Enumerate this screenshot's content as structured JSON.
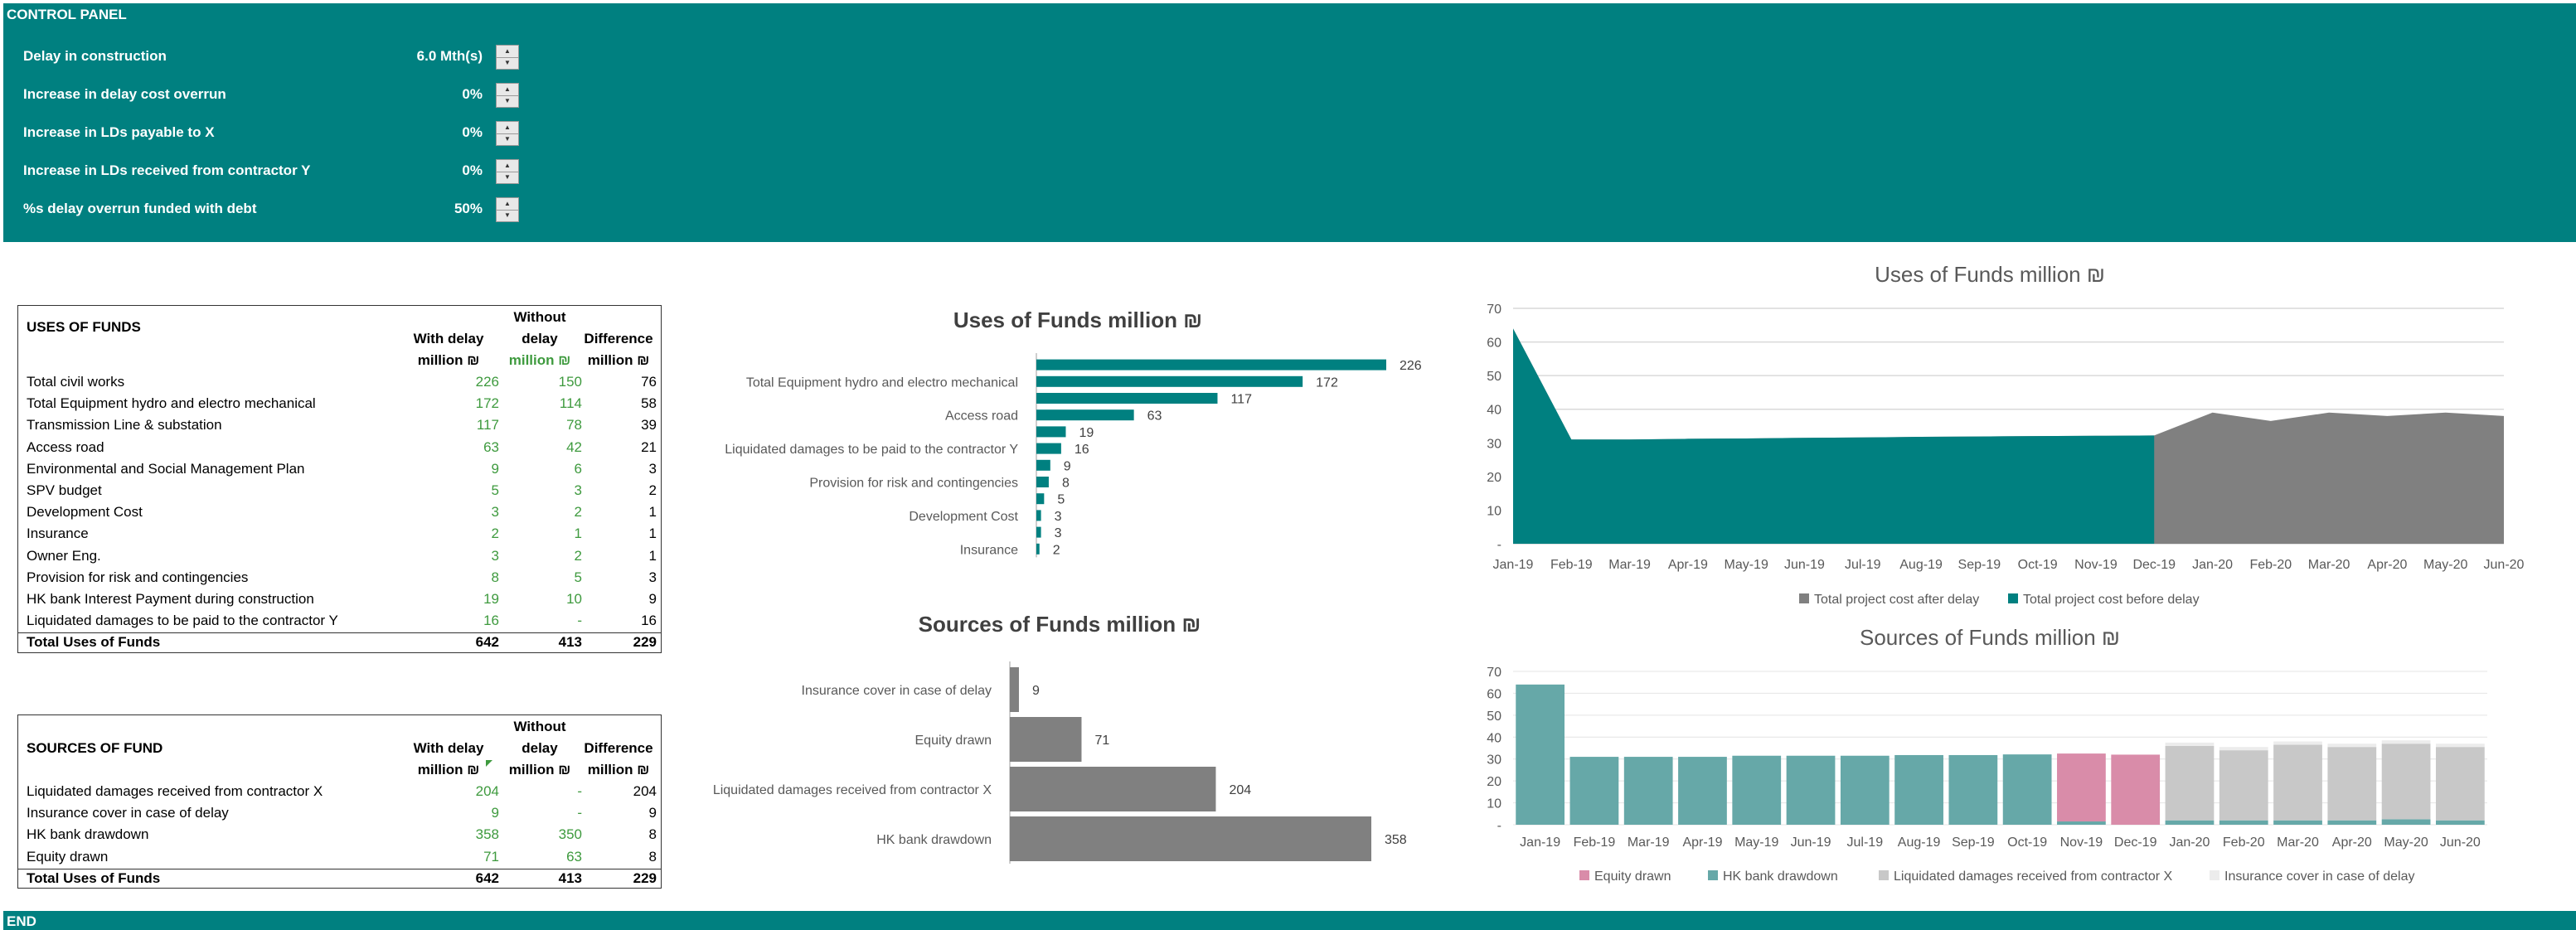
{
  "control_panel": {
    "title": "CONTROL PANEL",
    "rows": [
      {
        "label": "Delay in construction",
        "value": "6.0 Mth(s)"
      },
      {
        "label": "Increase in delay cost overrun",
        "value": "0%"
      },
      {
        "label": "Increase in LDs payable to X",
        "value": "0%"
      },
      {
        "label": "Increase in LDs received from contractor Y",
        "value": "0%"
      },
      {
        "label": "%s delay overrun funded with debt",
        "value": "50%"
      }
    ],
    "spinner_up": "▲",
    "spinner_down": "▼"
  },
  "footer": {
    "label": "END"
  },
  "uses_table": {
    "title": "USES OF FUNDS",
    "headers": {
      "with_l1": "With  delay",
      "with_l2": "million ₪",
      "without_l1": "Without",
      "without_l2": "delay",
      "without_l3": "million ₪",
      "diff_l1": "Difference",
      "diff_l2": "million ₪"
    },
    "rows": [
      {
        "label": "Total civil works",
        "with": "226",
        "without": "150",
        "diff": "76"
      },
      {
        "label": "Total Equipment hydro and electro mechanical",
        "with": "172",
        "without": "114",
        "diff": "58"
      },
      {
        "label": "Transmission Line & substation",
        "with": "117",
        "without": "78",
        "diff": "39"
      },
      {
        "label": "Access road",
        "with": "63",
        "without": "42",
        "diff": "21"
      },
      {
        "label": "Environmental and Social Management Plan",
        "with": "9",
        "without": "6",
        "diff": "3"
      },
      {
        "label": "SPV budget",
        "with": "5",
        "without": "3",
        "diff": "2"
      },
      {
        "label": "Development Cost",
        "with": "3",
        "without": "2",
        "diff": "1"
      },
      {
        "label": "Insurance",
        "with": "2",
        "without": "1",
        "diff": "1"
      },
      {
        "label": "Owner Eng.",
        "with": "3",
        "without": "2",
        "diff": "1"
      },
      {
        "label": "Provision for risk and contingencies",
        "with": "8",
        "without": "5",
        "diff": "3"
      },
      {
        "label": "HK bank  Interest Payment during construction",
        "with": "19",
        "without": "10",
        "diff": "9"
      },
      {
        "label": "Liquidated damages to be paid to the contractor Y",
        "with": "16",
        "without": "-",
        "diff": "16"
      }
    ],
    "total": {
      "label": "Total Uses of Funds",
      "with": "642",
      "without": "413",
      "diff": "229"
    }
  },
  "sources_table": {
    "title": "SOURCES OF FUND",
    "headers": {
      "with_l1": "With  delay",
      "with_l2": "million ₪",
      "without_l1": "Without",
      "without_l2": "delay",
      "without_l3": "million ₪",
      "diff_l1": "Difference",
      "diff_l2": "million ₪"
    },
    "rows": [
      {
        "label": "Liquidated damages received from contractor X",
        "with": "204",
        "without": "-",
        "diff": "204"
      },
      {
        "label": "Insurance cover in case of delay",
        "with": "9",
        "without": "-",
        "diff": "9"
      },
      {
        "label": "HK bank  drawdown",
        "with": "358",
        "without": "350",
        "diff": "8"
      },
      {
        "label": "Equity drawn",
        "with": "71",
        "without": "63",
        "diff": "8"
      }
    ],
    "total": {
      "label": "Total Uses of Funds",
      "with": "642",
      "without": "413",
      "diff": "229"
    }
  },
  "chart_data": [
    {
      "type": "bar",
      "orientation": "horizontal",
      "title": "Uses of Funds million ₪",
      "categories": [
        "",
        "Total Equipment hydro and electro mechanical",
        "",
        "Access road",
        "",
        "Liquidated damages to be paid to the contractor Y",
        "",
        "Provision for risk and contingencies",
        "",
        "Development Cost",
        "",
        "Insurance"
      ],
      "values": [
        226,
        172,
        117,
        63,
        19,
        16,
        9,
        8,
        5,
        3,
        3,
        2
      ],
      "color": "#008080"
    },
    {
      "type": "bar",
      "orientation": "horizontal",
      "title": "Sources of Funds million ₪",
      "categories": [
        "Insurance cover in case of delay",
        "Equity drawn",
        "Liquidated damages received from contractor X",
        "HK bank  drawdown"
      ],
      "values": [
        9,
        71,
        204,
        358
      ],
      "color": "#808080"
    },
    {
      "type": "area",
      "title": "Uses of Funds million ₪",
      "x": [
        "Jan-19",
        "Feb-19",
        "Mar-19",
        "Apr-19",
        "May-19",
        "Jun-19",
        "Jul-19",
        "Aug-19",
        "Sep-19",
        "Oct-19",
        "Nov-19",
        "Dec-19",
        "Jan-20",
        "Feb-20",
        "Mar-20",
        "Apr-20",
        "May-20",
        "Jun-20"
      ],
      "yticks": [
        "-",
        "10",
        "20",
        "30",
        "40",
        "50",
        "60",
        "70"
      ],
      "ylim": [
        0,
        70
      ],
      "grid": true,
      "legend_position": "bottom",
      "series": [
        {
          "name": "Total project cost  after delay",
          "color": "#808080",
          "values": [
            64,
            31,
            31,
            31.2,
            31.3,
            31.5,
            31.6,
            31.8,
            31.9,
            32,
            32.1,
            32.2,
            39,
            36.5,
            39,
            38,
            39,
            38
          ]
        },
        {
          "name": "Total project cost  before delay",
          "color": "#008080",
          "values": [
            64,
            31,
            31,
            31.2,
            31.3,
            31.5,
            31.6,
            31.8,
            31.9,
            32,
            32.1,
            32.2,
            null,
            null,
            null,
            null,
            null,
            null
          ]
        }
      ]
    },
    {
      "type": "bar",
      "stacked": true,
      "title": "Sources of Funds million ₪",
      "categories": [
        "Jan-19",
        "Feb-19",
        "Mar-19",
        "Apr-19",
        "May-19",
        "Jun-19",
        "Jul-19",
        "Aug-19",
        "Sep-19",
        "Oct-19",
        "Nov-19",
        "Dec-19",
        "Jan-20",
        "Feb-20",
        "Mar-20",
        "Apr-20",
        "May-20",
        "Jun-20"
      ],
      "yticks": [
        "-",
        "10",
        "20",
        "30",
        "40",
        "50",
        "60",
        "70"
      ],
      "ylim": [
        0,
        70
      ],
      "grid": true,
      "legend_position": "bottom",
      "series": [
        {
          "name": "Equity drawn",
          "color": "#d98ca9",
          "values": [
            0,
            0,
            0,
            0,
            0,
            0,
            0,
            0,
            0,
            0,
            31,
            32,
            0,
            0,
            0,
            0,
            0,
            0
          ]
        },
        {
          "name": "HK bank  drawdown",
          "color": "#66a8a8",
          "values": [
            64,
            31,
            31,
            31,
            31.5,
            31.5,
            31.5,
            31.8,
            31.8,
            32.1,
            1.5,
            0,
            2,
            2,
            2,
            2,
            2.5,
            2
          ]
        },
        {
          "name": "Liquidated damages received from contractor X",
          "color": "#c8c8c8",
          "values": [
            0,
            0,
            0,
            0,
            0,
            0,
            0,
            0,
            0,
            0,
            0,
            0,
            34,
            32,
            34.5,
            33.5,
            34.5,
            33.5
          ]
        },
        {
          "name": "Insurance cover in case of delay",
          "color": "#ececec",
          "values": [
            0,
            0,
            0,
            0,
            0,
            0,
            0,
            0,
            0,
            0,
            0,
            0,
            1.5,
            1.5,
            1.5,
            1.5,
            1.5,
            1.5
          ]
        }
      ]
    }
  ]
}
